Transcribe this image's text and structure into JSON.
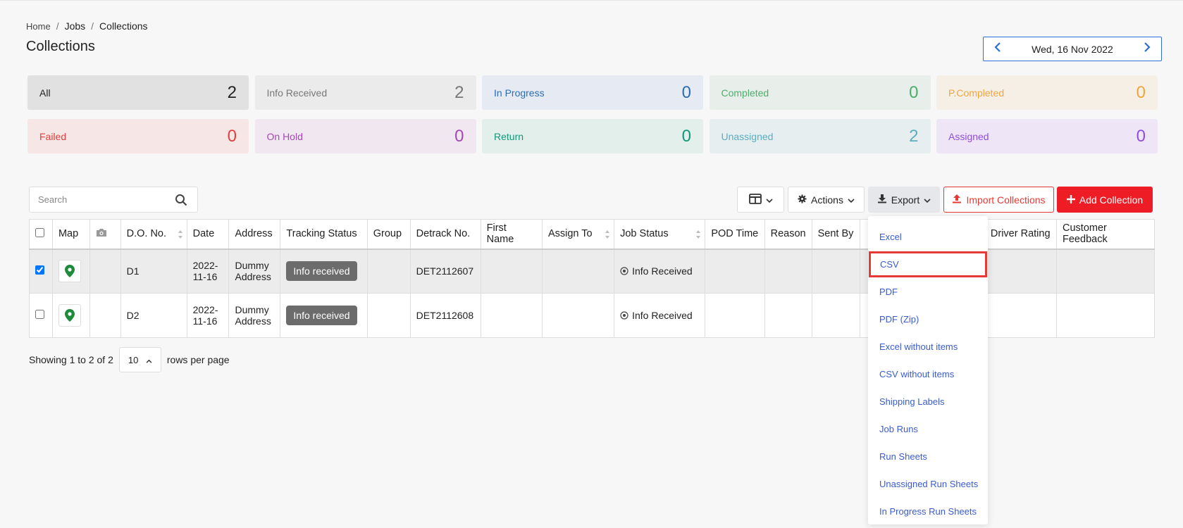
{
  "breadcrumb": {
    "home": "Home",
    "jobs": "Jobs",
    "current": "Collections"
  },
  "page_title": "Collections",
  "date_picker": {
    "label": "Wed, 16 Nov 2022"
  },
  "status_cards": [
    {
      "label": "All",
      "count": "2",
      "bg": "#e1e1e2",
      "color": "#222222"
    },
    {
      "label": "Info Received",
      "count": "2",
      "bg": "#ebebeb",
      "color": "#777777"
    },
    {
      "label": "In Progress",
      "count": "0",
      "bg": "#e6ebf3",
      "color": "#2a6db3"
    },
    {
      "label": "Completed",
      "count": "0",
      "bg": "#e8efea",
      "color": "#4cae6a"
    },
    {
      "label": "P.Completed",
      "count": "0",
      "bg": "#f6efe6",
      "color": "#f0a640"
    },
    {
      "label": "Failed",
      "count": "0",
      "bg": "#f7e6e6",
      "color": "#e0403f"
    },
    {
      "label": "On Hold",
      "count": "0",
      "bg": "#f1e7f1",
      "color": "#a448b4"
    },
    {
      "label": "Return",
      "count": "0",
      "bg": "#e2efea",
      "color": "#13977a"
    },
    {
      "label": "Unassigned",
      "count": "2",
      "bg": "#e7eef0",
      "color": "#5aaec0"
    },
    {
      "label": "Assigned",
      "count": "0",
      "bg": "#eee6f6",
      "color": "#8f4ee0"
    }
  ],
  "search": {
    "placeholder": "Search"
  },
  "toolbar": {
    "actions_label": "Actions",
    "export_label": "Export",
    "import_label": "Import Collections",
    "add_label": "Add Collection"
  },
  "table": {
    "columns": [
      "Map",
      "D.O. No.",
      "Date",
      "Address",
      "Tracking Status",
      "Group",
      "Detrack No.",
      "First Name",
      "Assign To",
      "Job Status",
      "POD Time",
      "Reason",
      "Sent By",
      "Driver Rating",
      "Customer Feedback"
    ],
    "rows": [
      {
        "checked": true,
        "do_no": "D1",
        "date_line1": "2022-",
        "date_line2": "11-16",
        "addr_line1": "Dummy",
        "addr_line2": "Address",
        "tracking": "Info received",
        "detrack": "DET2112607",
        "job_status": "Info Received"
      },
      {
        "checked": false,
        "do_no": "D2",
        "date_line1": "2022-",
        "date_line2": "11-16",
        "addr_line1": "Dummy",
        "addr_line2": "Address",
        "tracking": "Info received",
        "detrack": "DET2112608",
        "job_status": "Info Received"
      }
    ]
  },
  "pager": {
    "showing": "Showing 1 to 2 of 2",
    "page_size": "10",
    "rows_label": "rows per page"
  },
  "export_menu": {
    "items": [
      "Excel",
      "CSV",
      "PDF",
      "PDF (Zip)",
      "Excel without items",
      "CSV without items",
      "Shipping Labels",
      "Job Runs",
      "Run Sheets",
      "Unassigned Run Sheets",
      "In Progress Run Sheets"
    ],
    "highlighted": "CSV"
  },
  "colors": {
    "accent": "#2e6fd9",
    "danger": "#ee1c25",
    "link": "#3a5bd0",
    "map_pin": "#1e8a3c"
  }
}
